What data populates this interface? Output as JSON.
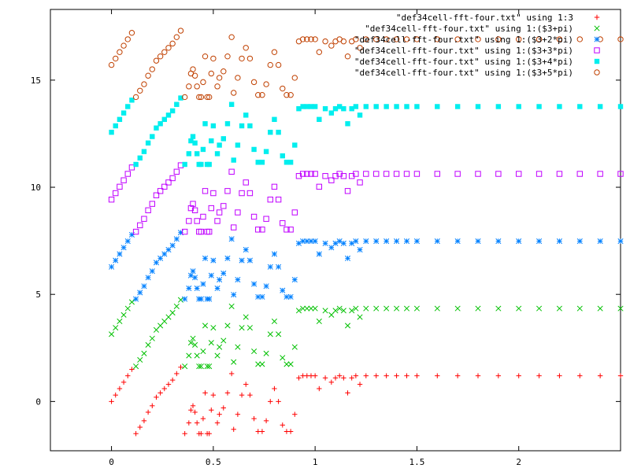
{
  "chart_data": {
    "type": "scatter",
    "title": "",
    "xlabel": "",
    "ylabel": "",
    "xlim": [
      -0.3,
      2.5
    ],
    "ylim": [
      -2.3,
      18.3
    ],
    "xticks": [
      0,
      0.5,
      1,
      1.5,
      2
    ],
    "xtick_labels": [
      "0",
      "0.5",
      "1",
      "1.5",
      "2"
    ],
    "yticks": [
      0,
      5,
      10,
      15
    ],
    "ytick_labels": [
      "0",
      "5",
      "10",
      "15"
    ],
    "grid": false,
    "legend_position": "top-right",
    "series": [
      {
        "name": "\"def34cell-fft-four.txt\" using 1:3",
        "offset_pi_multiple": 0,
        "color": "#ff0000",
        "marker": "plus"
      },
      {
        "name": "\"def34cell-fft-four.txt\" using 1:($3+pi)",
        "offset_pi_multiple": 1,
        "color": "#00c000",
        "marker": "cross"
      },
      {
        "name": "\"def34cell-fft-four.txt\" using 1:($3+2*pi)",
        "offset_pi_multiple": 2,
        "color": "#0080ff",
        "marker": "star"
      },
      {
        "name": "\"def34cell-fft-four.txt\" using 1:($3+3*pi)",
        "offset_pi_multiple": 3,
        "color": "#c000ff",
        "marker": "square-open"
      },
      {
        "name": "\"def34cell-fft-four.txt\" using 1:($3+4*pi)",
        "offset_pi_multiple": 4,
        "color": "#00eeee",
        "marker": "square-filled"
      },
      {
        "name": "\"def34cell-fft-four.txt\" using 1:($3+5*pi)",
        "offset_pi_multiple": 5,
        "color": "#c04000",
        "marker": "circle-open"
      }
    ],
    "base_points": {
      "x": [
        0,
        0.02,
        0.04,
        0.06,
        0.08,
        0.1,
        0.12,
        0.14,
        0.16,
        0.18,
        0.2,
        0.22,
        0.24,
        0.26,
        0.28,
        0.3,
        0.32,
        0.34,
        0.36,
        0.38,
        0.39,
        0.4,
        0.41,
        0.42,
        0.43,
        0.44,
        0.45,
        0.46,
        0.47,
        0.48,
        0.49,
        0.5,
        0.52,
        0.53,
        0.55,
        0.57,
        0.59,
        0.6,
        0.62,
        0.64,
        0.66,
        0.68,
        0.7,
        0.72,
        0.74,
        0.76,
        0.78,
        0.8,
        0.82,
        0.84,
        0.86,
        0.88,
        0.9,
        0.92,
        0.94,
        0.96,
        0.98,
        1,
        1.02,
        1.05,
        1.08,
        1.1,
        1.12,
        1.14,
        1.16,
        1.18,
        1.2,
        1.22,
        1.25,
        1.3,
        1.35,
        1.4,
        1.45,
        1.5,
        1.6,
        1.7,
        1.8,
        1.9,
        2,
        2.1,
        2.2,
        2.3,
        2.4,
        2.5
      ],
      "y": [
        0.0,
        0.3,
        0.6,
        0.9,
        1.2,
        1.5,
        -1.5,
        -1.2,
        -0.9,
        -0.5,
        -0.2,
        0.2,
        0.4,
        0.6,
        0.8,
        1.0,
        1.3,
        1.6,
        -1.5,
        -1.0,
        -0.4,
        -0.2,
        -0.5,
        -1.0,
        -1.5,
        -1.5,
        -0.8,
        0.4,
        -1.5,
        -1.5,
        -0.4,
        0.3,
        -1.0,
        -0.6,
        -0.3,
        0.4,
        1.3,
        -1.3,
        -0.6,
        0.3,
        0.8,
        0.3,
        -0.8,
        -1.4,
        -1.4,
        -0.9,
        0.0,
        0.6,
        0.0,
        -1.1,
        -1.4,
        -1.4,
        -0.6,
        1.1,
        1.2,
        1.2,
        1.2,
        1.2,
        0.6,
        1.1,
        0.9,
        1.1,
        1.2,
        1.1,
        0.4,
        1.1,
        1.2,
        0.8,
        1.2,
        1.2,
        1.2,
        1.2,
        1.2,
        1.2,
        1.2,
        1.2,
        1.2,
        1.2,
        1.2,
        1.2,
        1.2,
        1.2,
        1.2,
        1.2
      ]
    }
  }
}
